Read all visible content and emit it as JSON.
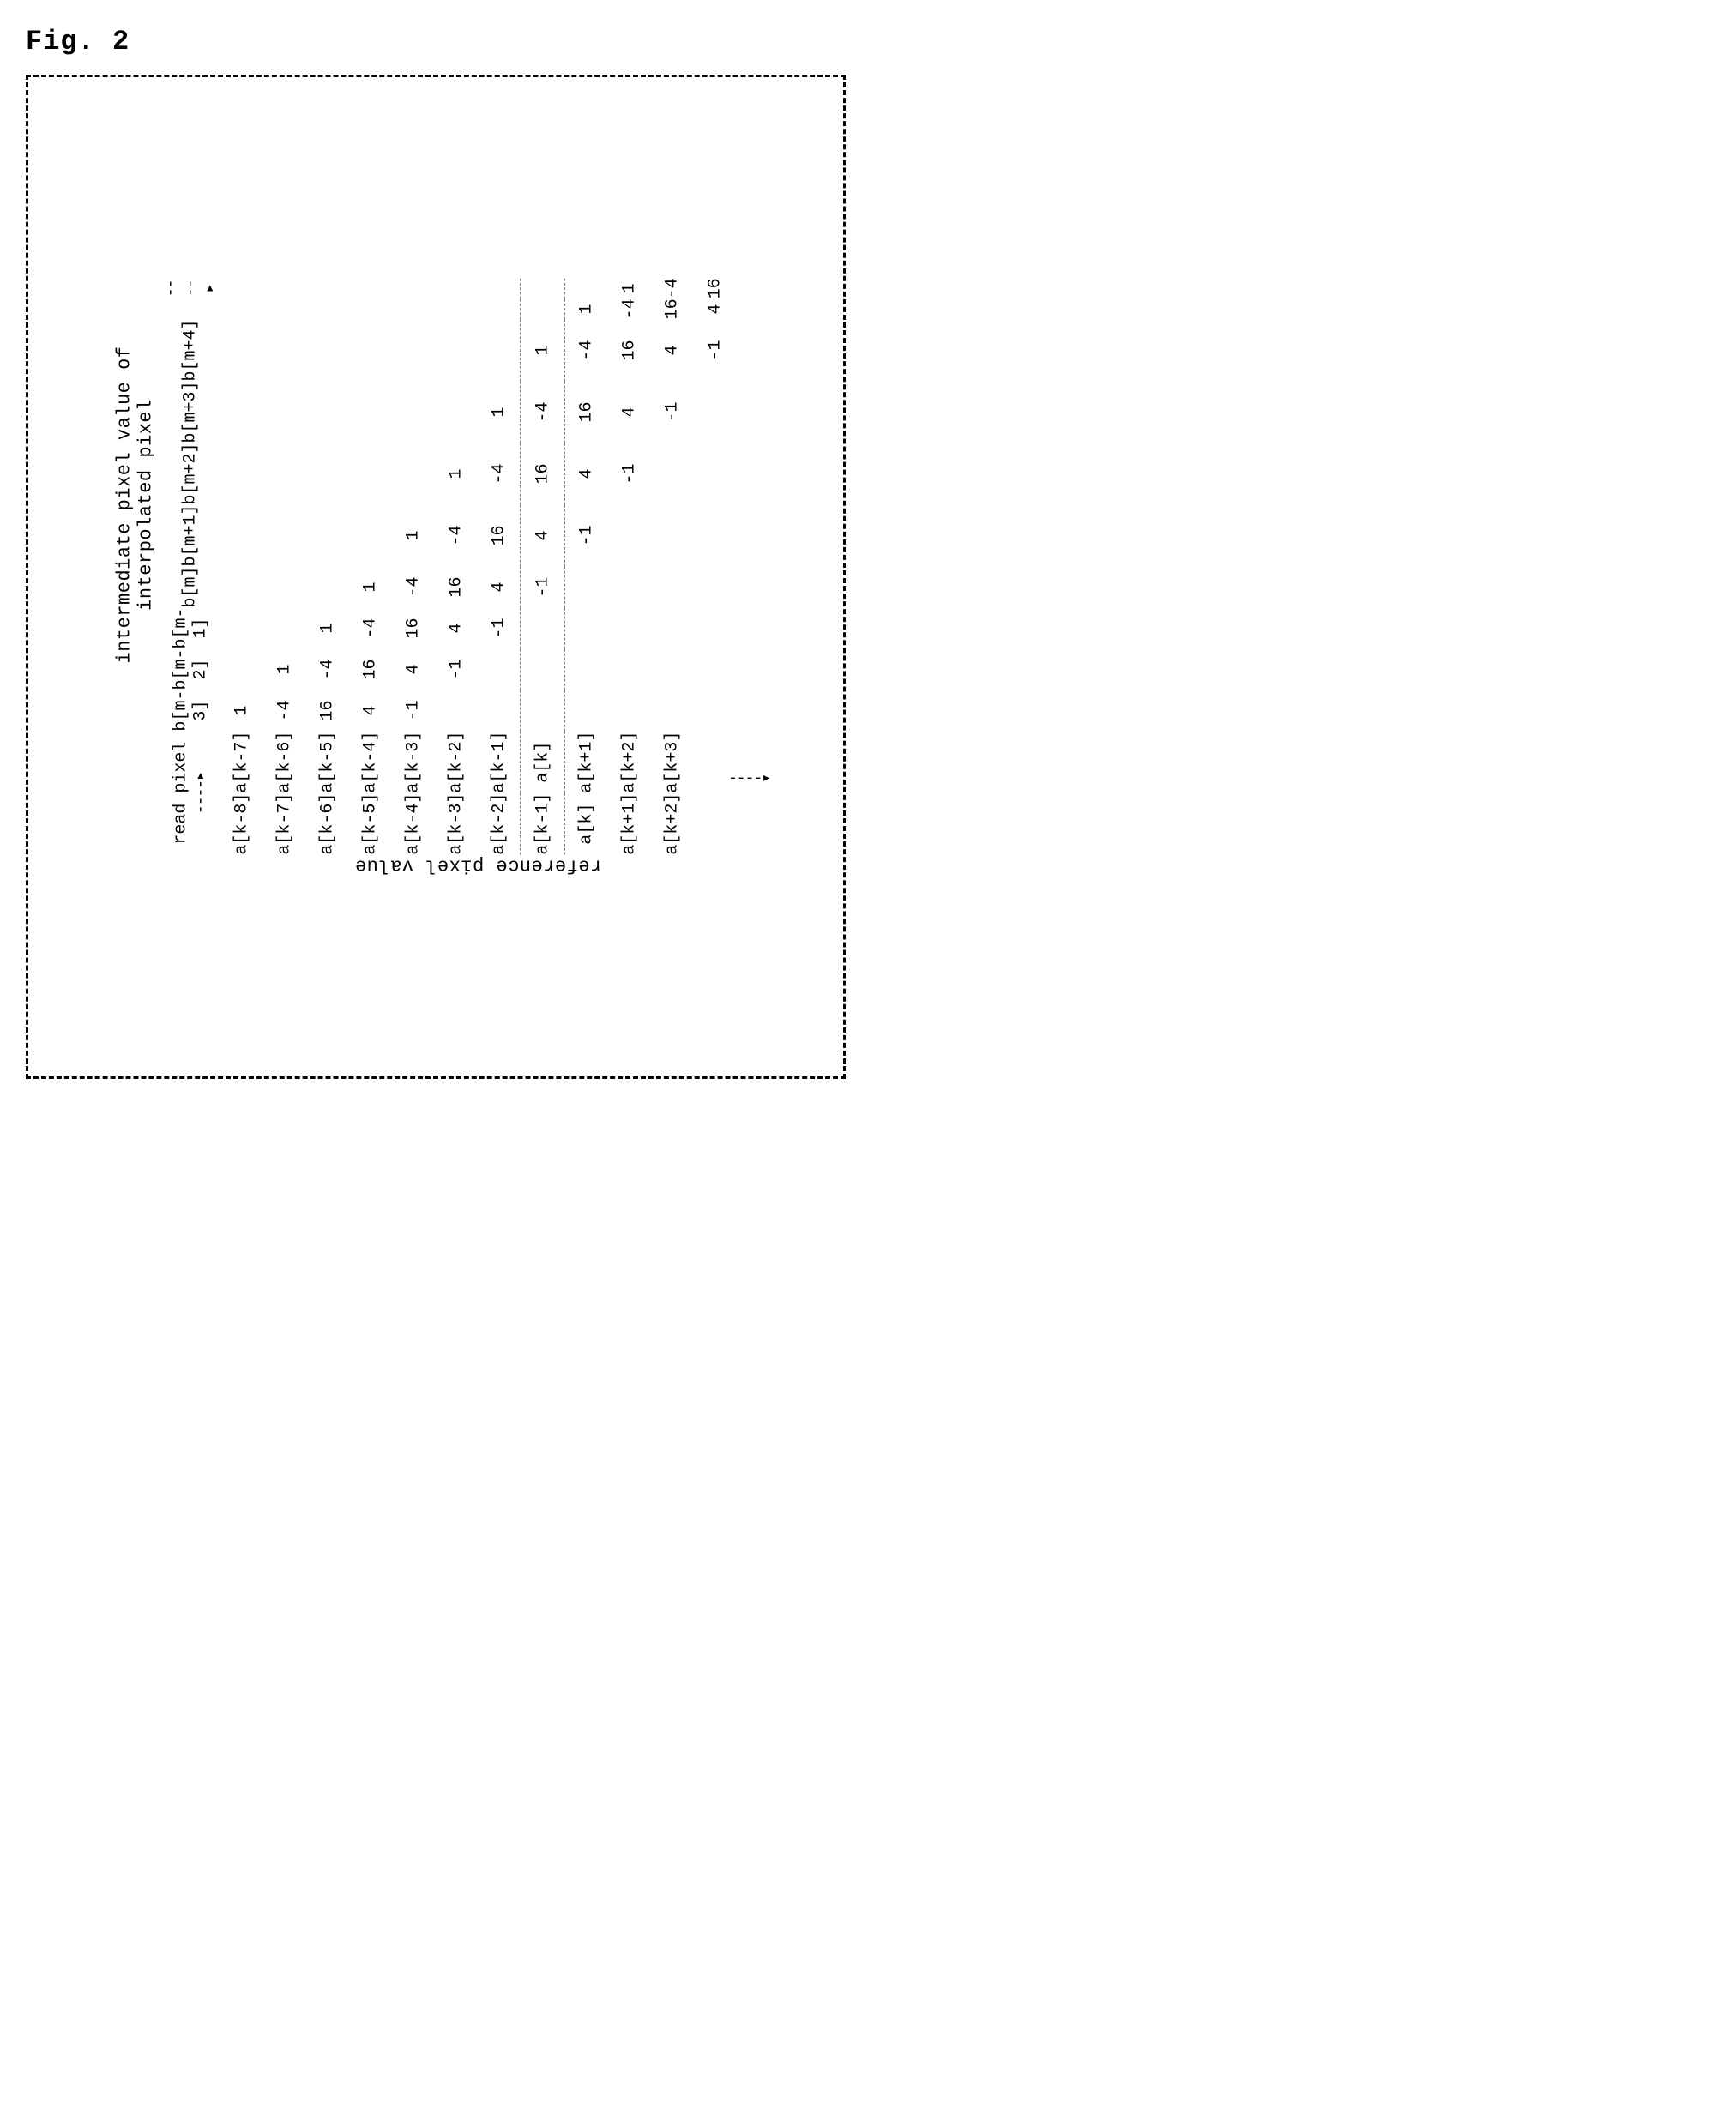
{
  "figure_label": "Fig. 2",
  "captions": {
    "side_label": "reference pixel value",
    "top_group": "intermediate pixel value of interpolated pixel",
    "read_pixel": "read pixel"
  },
  "read_cols": {
    "left": [
      "a[k-8]",
      "a[k-7]",
      "a[k-6]",
      "a[k-5]",
      "a[k-4]",
      "a[k-3]",
      "a[k-2]",
      "a[k-1]",
      "a[k]",
      "a[k+1]",
      "a[k+2]",
      ""
    ],
    "right": [
      "a[k-7]",
      "a[k-6]",
      "a[k-5]",
      "a[k-4]",
      "a[k-3]",
      "a[k-2]",
      "a[k-1]",
      "a[k]",
      "a[k+1]",
      "a[k+2]",
      "a[k+3]",
      ""
    ]
  },
  "b_headers": [
    "b[m-3]",
    "b[m-2]",
    "b[m-1]",
    "b[m]",
    "b[m+1]",
    "b[m+2]",
    "b[m+3]",
    "b[m+4]",
    "",
    ""
  ],
  "coeff_rows": [
    [
      "1",
      "",
      "",
      "",
      "",
      "",
      "",
      "",
      "",
      ""
    ],
    [
      "-4",
      "1",
      "",
      "",
      "",
      "",
      "",
      "",
      "",
      ""
    ],
    [
      "16",
      "-4",
      "1",
      "",
      "",
      "",
      "",
      "",
      "",
      ""
    ],
    [
      "4",
      "16",
      "-4",
      "1",
      "",
      "",
      "",
      "",
      "",
      ""
    ],
    [
      "-1",
      "4",
      "16",
      "-4",
      "1",
      "",
      "",
      "",
      "",
      ""
    ],
    [
      "",
      "-1",
      "4",
      "16",
      "-4",
      "1",
      "",
      "",
      "",
      ""
    ],
    [
      "",
      "",
      "-1",
      "4",
      "16",
      "-4",
      "1",
      "",
      "",
      ""
    ],
    [
      "",
      "",
      "",
      "-1",
      "4",
      "16",
      "-4",
      "1",
      "",
      ""
    ],
    [
      "",
      "",
      "",
      "",
      "-1",
      "4",
      "16",
      "-4",
      "1",
      ""
    ],
    [
      "",
      "",
      "",
      "",
      "",
      "-1",
      "4",
      "16",
      "-4",
      "1"
    ],
    [
      "",
      "",
      "",
      "",
      "",
      "",
      "-1",
      "4",
      "16",
      "-4"
    ],
    [
      "",
      "",
      "",
      "",
      "",
      "",
      "",
      "-1",
      "4",
      "16"
    ]
  ],
  "dashed_rows": [
    7,
    8
  ],
  "style": {
    "font_family": "Courier New",
    "border_color": "#000000",
    "background": "#ffffff"
  }
}
